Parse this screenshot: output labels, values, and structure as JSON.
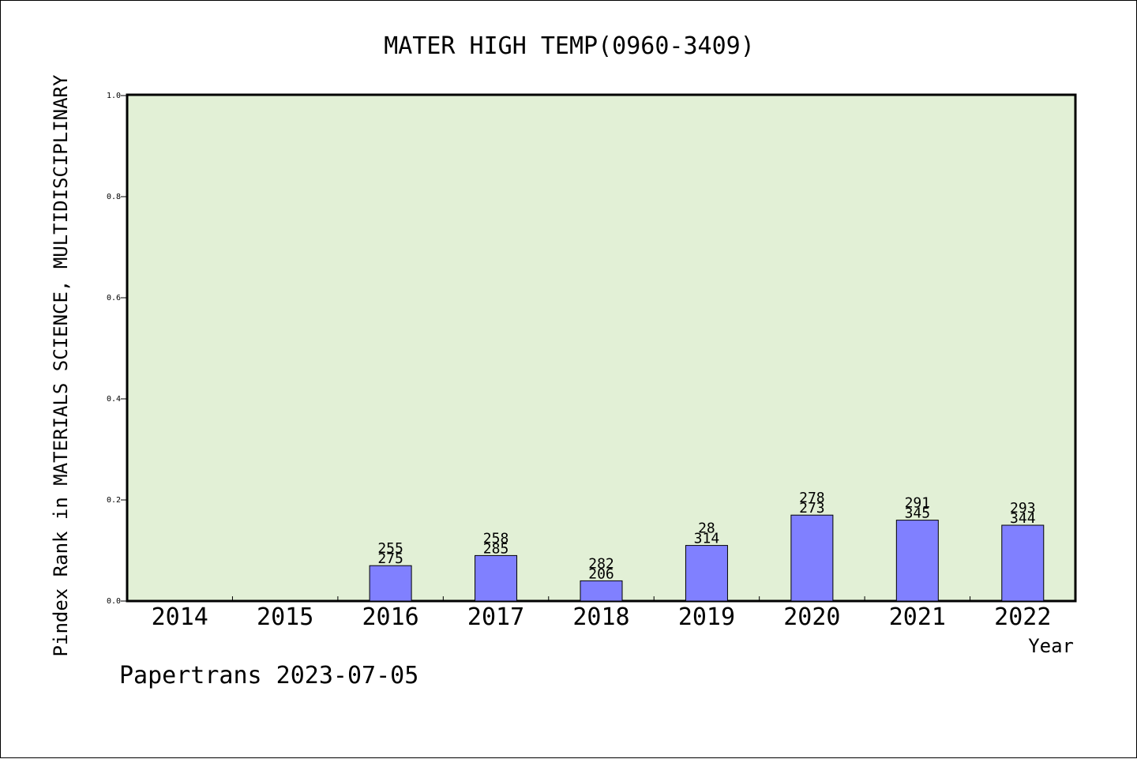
{
  "chart_data": {
    "type": "bar",
    "title": "MATER HIGH TEMP(0960-3409)",
    "xlabel": "Year",
    "ylabel": "Pindex Rank in MATERIALS SCIENCE, MULTIDISCIPLINARY",
    "categories": [
      "2014",
      "2015",
      "2016",
      "2017",
      "2018",
      "2019",
      "2020",
      "2021",
      "2022"
    ],
    "values": [
      null,
      null,
      0.07,
      0.09,
      0.04,
      0.11,
      0.17,
      0.16,
      0.15
    ],
    "labels_top": [
      "",
      "",
      "255",
      "258",
      "282",
      "28",
      "278",
      "291",
      "293"
    ],
    "labels_bottom": [
      "",
      "",
      "275",
      "285",
      "206",
      "314",
      "273",
      "345",
      "344"
    ],
    "ylim": [
      0.0,
      1.0
    ],
    "yticks": [
      "0.0",
      "0.2",
      "0.4",
      "0.6",
      "0.8",
      "1.0"
    ],
    "grid": false,
    "colors": {
      "plot_background": "#e2f0d6",
      "bar_fill": "#8080ff",
      "bar_stroke": "#000000"
    }
  },
  "footer": "Papertrans 2023-07-05"
}
